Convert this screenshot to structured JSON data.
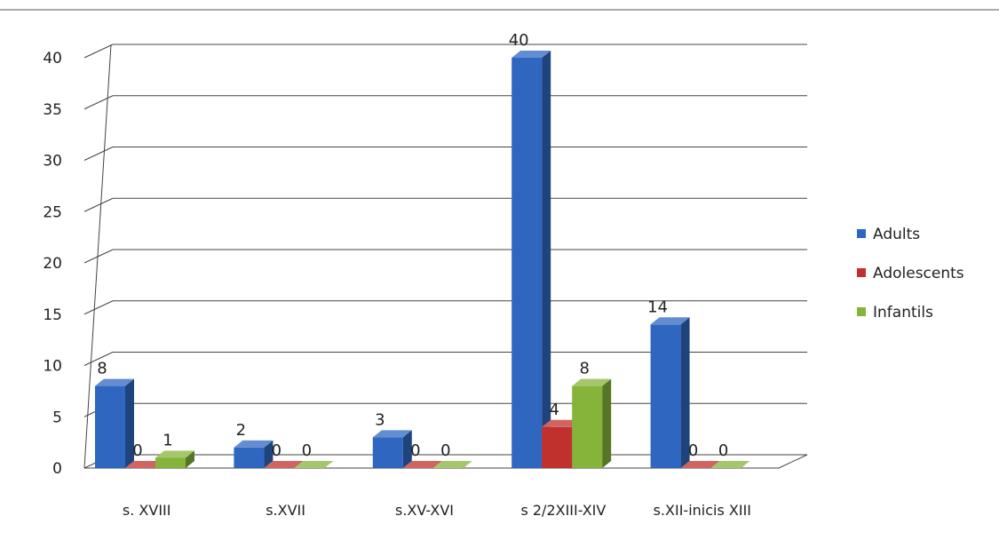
{
  "chart_data": {
    "type": "bar",
    "title": "",
    "xlabel": "",
    "ylabel": "",
    "ylim": [
      0,
      40
    ],
    "yticks": [
      0,
      5,
      10,
      15,
      20,
      25,
      30,
      35,
      40
    ],
    "grid": true,
    "legend_position": "right",
    "categories": [
      "s. XVIII",
      "s.XVII",
      "s.XV-XVI",
      "s 2/2XIII-XIV",
      "s.XII-inicis XIII"
    ],
    "series": [
      {
        "name": "Adults",
        "color": "#2f67c0",
        "values": [
          8,
          2,
          3,
          40,
          14
        ]
      },
      {
        "name": "Adolescents",
        "color": "#c0302c",
        "values": [
          0,
          0,
          0,
          4,
          0
        ]
      },
      {
        "name": "Infantils",
        "color": "#86b43a",
        "values": [
          1,
          0,
          0,
          8,
          0
        ]
      }
    ]
  }
}
